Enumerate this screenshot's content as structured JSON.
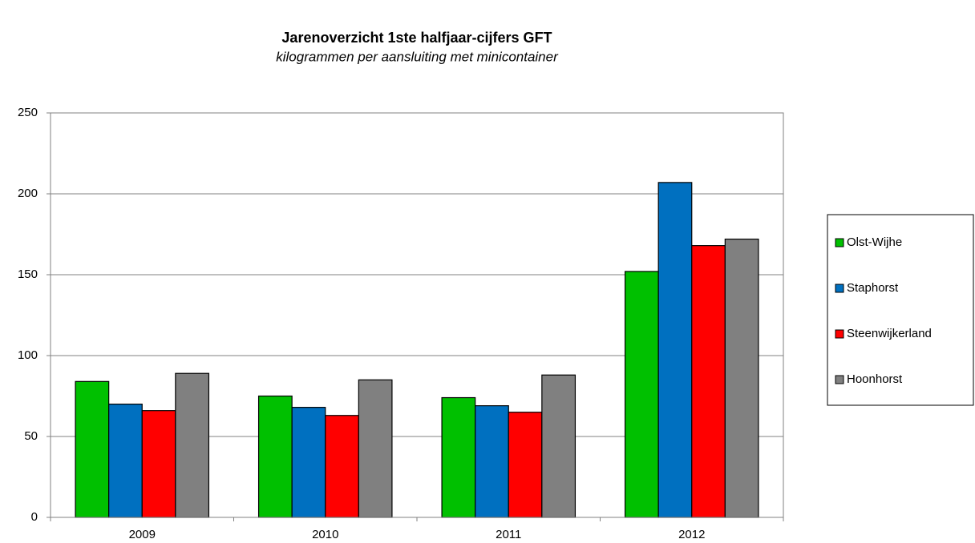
{
  "chart_data": {
    "type": "bar",
    "title": "Jarenoverzicht 1ste halfjaar-cijfers GFT",
    "subtitle": "kilogrammen per aansluiting met minicontainer",
    "categories": [
      "2009",
      "2010",
      "2011",
      "2012"
    ],
    "series": [
      {
        "name": "Olst-Wijhe",
        "color": "#00c000",
        "values": [
          84,
          75,
          74,
          152
        ]
      },
      {
        "name": "Staphorst",
        "color": "#0070c0",
        "values": [
          70,
          68,
          69,
          207
        ]
      },
      {
        "name": "Steenwijkerland",
        "color": "#ff0000",
        "values": [
          66,
          63,
          65,
          168
        ]
      },
      {
        "name": "Hoonhorst",
        "color": "#808080",
        "values": [
          89,
          85,
          88,
          172
        ]
      }
    ],
    "ylim": [
      0,
      250
    ],
    "yticks": [
      0,
      50,
      100,
      150,
      200,
      250
    ],
    "grid": true,
    "legend": "right"
  }
}
